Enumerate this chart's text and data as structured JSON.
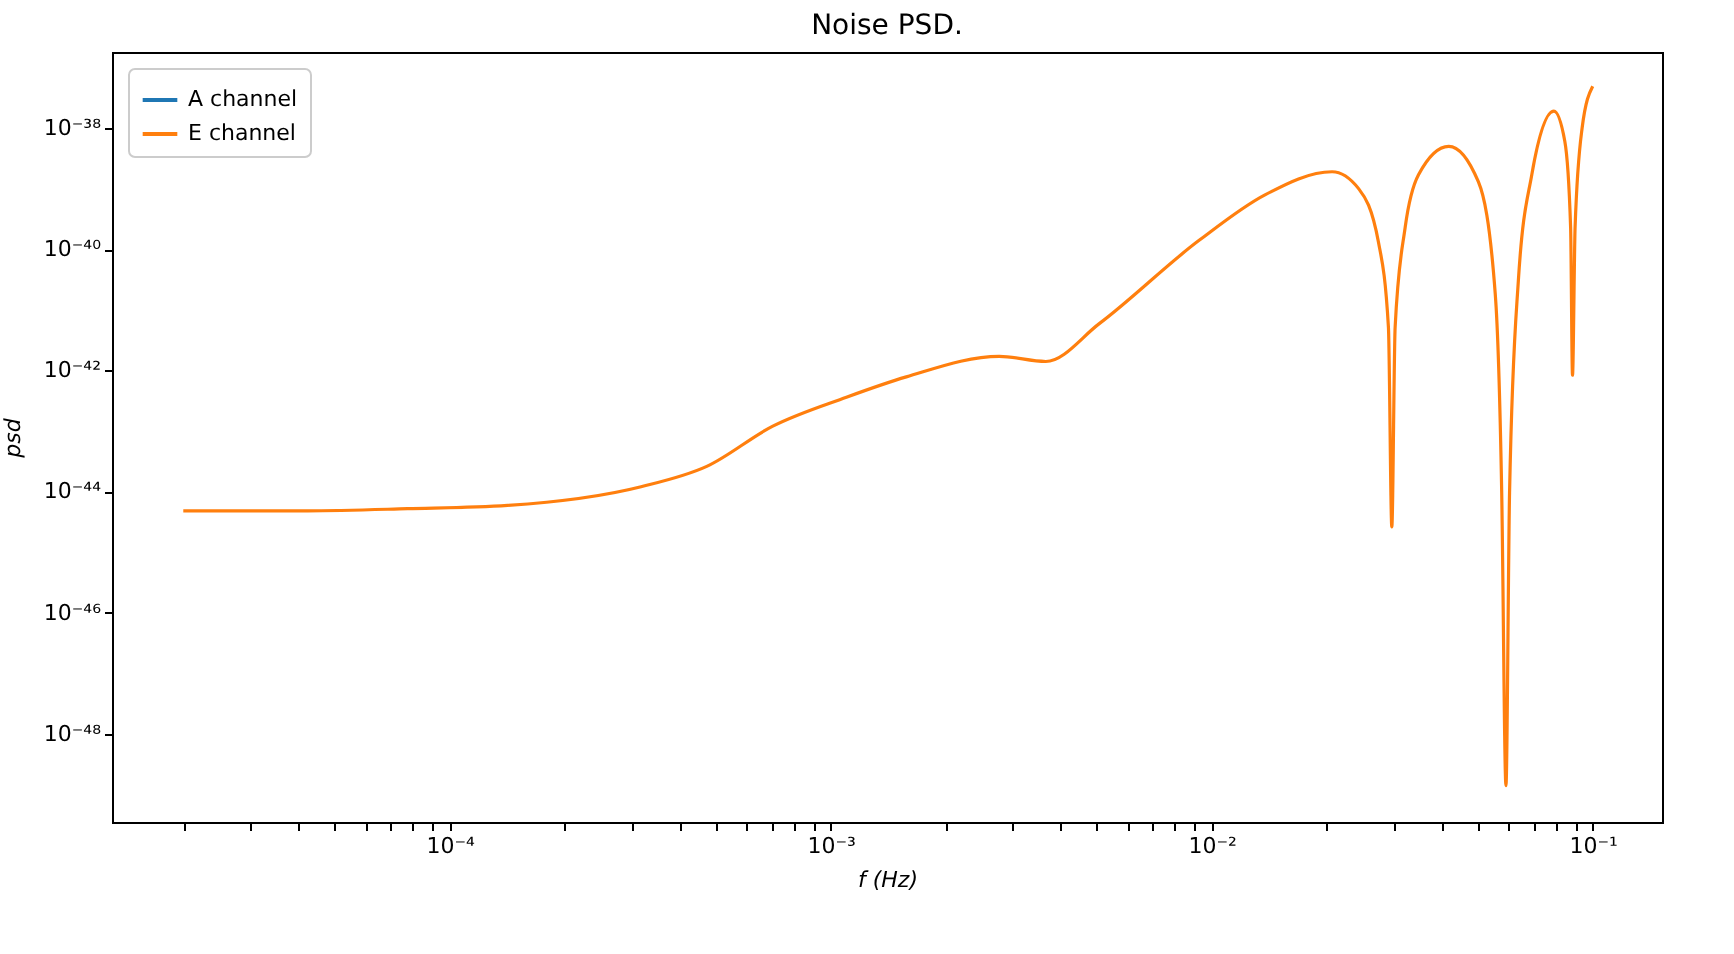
{
  "chart_data": {
    "type": "line",
    "title": "Noise PSD.",
    "xlabel": "f (Hz)",
    "ylabel": "psd",
    "log": "xy",
    "grid": false,
    "legend": "top left",
    "marker": "none",
    "line_style": "solid",
    "xlim": [
      1.3e-05,
      0.152
    ],
    "ylim": [
      3.5e-50,
      1.8e-37
    ],
    "xticks": [
      {
        "value": 2e-05,
        "label": null
      },
      {
        "value": 3e-05,
        "label": null
      },
      {
        "value": 4e-05,
        "label": null
      },
      {
        "value": 5e-05,
        "label": null
      },
      {
        "value": 6e-05,
        "label": null
      },
      {
        "value": 7e-05,
        "label": null
      },
      {
        "value": 8e-05,
        "label": null
      },
      {
        "value": 9e-05,
        "label": null
      },
      {
        "value": 0.0001,
        "label": "10⁻⁴"
      },
      {
        "value": 0.0002,
        "label": null
      },
      {
        "value": 0.0003,
        "label": null
      },
      {
        "value": 0.0004,
        "label": null
      },
      {
        "value": 0.0005,
        "label": null
      },
      {
        "value": 0.0006,
        "label": null
      },
      {
        "value": 0.0007,
        "label": null
      },
      {
        "value": 0.0008,
        "label": null
      },
      {
        "value": 0.0009,
        "label": null
      },
      {
        "value": 0.001,
        "label": "10⁻³"
      },
      {
        "value": 0.002,
        "label": null
      },
      {
        "value": 0.003,
        "label": null
      },
      {
        "value": 0.004,
        "label": null
      },
      {
        "value": 0.005,
        "label": null
      },
      {
        "value": 0.006,
        "label": null
      },
      {
        "value": 0.007,
        "label": null
      },
      {
        "value": 0.008,
        "label": null
      },
      {
        "value": 0.009,
        "label": null
      },
      {
        "value": 0.01,
        "label": "10⁻²"
      },
      {
        "value": 0.02,
        "label": null
      },
      {
        "value": 0.03,
        "label": null
      },
      {
        "value": 0.04,
        "label": null
      },
      {
        "value": 0.05,
        "label": null
      },
      {
        "value": 0.06,
        "label": null
      },
      {
        "value": 0.07,
        "label": null
      },
      {
        "value": 0.08,
        "label": null
      },
      {
        "value": 0.09,
        "label": null
      },
      {
        "value": 0.1,
        "label": "10⁻¹"
      }
    ],
    "yticks": [
      {
        "value": 1e-48,
        "label": "10⁻⁴⁸"
      },
      {
        "value": 1e-46,
        "label": "10⁻⁴⁶"
      },
      {
        "value": 1e-44,
        "label": "10⁻⁴⁴"
      },
      {
        "value": 1e-42,
        "label": "10⁻⁴²"
      },
      {
        "value": 1e-40,
        "label": "10⁻⁴⁰"
      },
      {
        "value": 1e-38,
        "label": "10⁻³⁸"
      }
    ],
    "x": [
      2e-05,
      4.25e-05,
      7.76e-05,
      0.000142,
      0.000318,
      0.000473,
      0.000705,
      0.0011,
      0.00158,
      0.00277,
      0.00367,
      0.00507,
      0.00927,
      0.0138,
      0.0207,
      0.0243,
      0.0274,
      0.0291,
      0.0297,
      0.0303,
      0.0322,
      0.0349,
      0.0419,
      0.0501,
      0.0555,
      0.0577,
      0.0592,
      0.0605,
      0.0638,
      0.0692,
      0.0791,
      0.0845,
      0.0875,
      0.0885,
      0.0899,
      0.0938,
      0.1
    ],
    "series": [
      {
        "name": "A channel",
        "color": "#1f77b4",
        "values": [
          null,
          null,
          null,
          null,
          null,
          null,
          null,
          null,
          null,
          null,
          null,
          null,
          null,
          null,
          null,
          null,
          null,
          null,
          null,
          null,
          null,
          null,
          null,
          null,
          null,
          null,
          null,
          null,
          null,
          null,
          null,
          null,
          null,
          null,
          null,
          null,
          null
        ]
      },
      {
        "name": "E channel",
        "color": "#ff7f0e",
        "values": [
          4.8e-45,
          4.8e-45,
          5.2e-45,
          5.9e-45,
          1.2e-44,
          2.6e-44,
          1.2e-43,
          3.6e-43,
          7.8e-43,
          1.7e-42,
          1.4e-42,
          5.9e-42,
          1.4e-40,
          7.9e-40,
          1.9e-39,
          1e-39,
          1.3e-40,
          5.1e-42,
          2.6e-45,
          5.1e-42,
          2.3e-40,
          1.7e-39,
          5e-39,
          1.3e-39,
          1.8e-41,
          9.5e-45,
          1.4e-49,
          9.5e-45,
          3e-41,
          1.7e-39,
          1.9e-38,
          6e-39,
          2.3e-40,
          8.3e-43,
          2.3e-40,
          1e-38,
          4.9e-38
        ]
      }
    ]
  }
}
